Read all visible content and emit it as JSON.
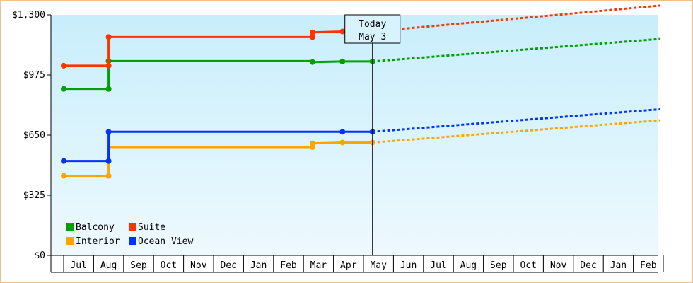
{
  "chart_data": {
    "type": "line",
    "title": "",
    "xlabel": "",
    "ylabel": "",
    "x_ticks": [
      "Jul",
      "Aug",
      "Sep",
      "Oct",
      "Nov",
      "Dec",
      "Jan",
      "Feb",
      "Mar",
      "Apr",
      "May",
      "Jun",
      "Jul",
      "Aug",
      "Sep",
      "Oct",
      "Nov",
      "Dec",
      "Jan",
      "Feb"
    ],
    "y_ticks": [
      "$0",
      "$325",
      "$650",
      "$975",
      "$1,300"
    ],
    "ylim": [
      0,
      1300
    ],
    "grid": false,
    "legend_position": "bottom-left",
    "today_marker": {
      "line1": "Today",
      "line2": "May 3"
    },
    "series": [
      {
        "name": "Balcony",
        "color": "#00a000",
        "history": [
          [
            -0.5,
            900
          ],
          [
            1.0,
            900
          ],
          [
            1.0,
            1050
          ],
          [
            7.8,
            1050
          ],
          [
            7.8,
            1045
          ],
          [
            8.8,
            1048
          ],
          [
            9.8,
            1048
          ]
        ],
        "markers": [
          [
            -0.5,
            900
          ],
          [
            1.0,
            900
          ],
          [
            1.0,
            1050
          ],
          [
            7.8,
            1045
          ],
          [
            8.8,
            1048
          ],
          [
            9.8,
            1048
          ]
        ],
        "forecast": [
          [
            9.8,
            1048
          ],
          [
            19.4,
            1170
          ]
        ]
      },
      {
        "name": "Suite",
        "color": "#ff3300",
        "history": [
          [
            -0.5,
            1025
          ],
          [
            1.0,
            1025
          ],
          [
            1.0,
            1180
          ],
          [
            7.8,
            1180
          ],
          [
            7.8,
            1205
          ],
          [
            8.8,
            1210
          ],
          [
            9.8,
            1210
          ]
        ],
        "markers": [
          [
            -0.5,
            1025
          ],
          [
            1.0,
            1025
          ],
          [
            1.0,
            1180
          ],
          [
            7.8,
            1180
          ],
          [
            7.8,
            1205
          ],
          [
            8.8,
            1210
          ],
          [
            9.8,
            1210
          ]
        ],
        "forecast": [
          [
            9.8,
            1210
          ],
          [
            19.4,
            1350
          ]
        ]
      },
      {
        "name": "Interior",
        "color": "#ffa500",
        "history": [
          [
            -0.5,
            430
          ],
          [
            1.0,
            430
          ],
          [
            1.0,
            585
          ],
          [
            7.8,
            585
          ],
          [
            7.8,
            605
          ],
          [
            8.8,
            610
          ],
          [
            9.8,
            610
          ]
        ],
        "markers": [
          [
            -0.5,
            430
          ],
          [
            1.0,
            430
          ],
          [
            7.8,
            585
          ],
          [
            7.8,
            605
          ],
          [
            8.8,
            610
          ],
          [
            9.8,
            610
          ]
        ],
        "forecast": [
          [
            9.8,
            610
          ],
          [
            19.4,
            730
          ]
        ]
      },
      {
        "name": "Ocean View",
        "color": "#0033ff",
        "history": [
          [
            -0.5,
            510
          ],
          [
            1.0,
            510
          ],
          [
            1.0,
            668
          ],
          [
            8.8,
            668
          ],
          [
            9.8,
            668
          ]
        ],
        "markers": [
          [
            -0.5,
            510
          ],
          [
            1.0,
            510
          ],
          [
            1.0,
            668
          ],
          [
            8.8,
            668
          ],
          [
            9.8,
            668
          ]
        ],
        "forecast": [
          [
            9.8,
            668
          ],
          [
            19.4,
            790
          ]
        ]
      }
    ]
  }
}
